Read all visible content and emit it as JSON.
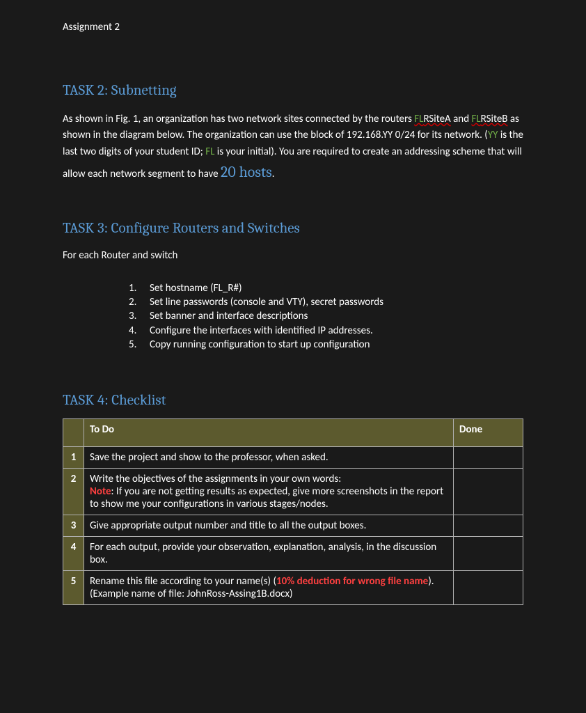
{
  "header": "Assignment 2",
  "task2": {
    "heading": "TASK 2: Subnetting",
    "p_pre": "As shown in Fig. 1, an organization has two network sites connected by the routers ",
    "site_a_fl": "FL",
    "site_a_rest": "RSiteA",
    "p_and": " and ",
    "site_b_fl": "FL",
    "site_b_rest": "RSiteB",
    "p_mid1": " as shown in the diagram below. The organization can use the block of 192.168.YY 0/24 for its network. (",
    "yy": "YY",
    "p_mid2": " is the last two digits of your student ID; ",
    "fl": "FL",
    "p_mid3": " is your initial). You are required to create an addressing scheme that will allow each network segment to have ",
    "hosts": "20 hosts",
    "p_end": "."
  },
  "task3": {
    "heading": "TASK 3: Configure Routers and Switches",
    "sub": "For each Router and switch",
    "items": [
      "Set hostname (FL_R#)",
      "Set line passwords (console and VTY), secret passwords",
      "Set banner and interface descriptions",
      "Configure the interfaces with identified IP addresses.",
      "Copy running configuration to start up configuration"
    ]
  },
  "task4": {
    "heading": "TASK 4: Checklist",
    "col_todo": "To Do",
    "col_done": "Done",
    "rows": [
      {
        "n": "1",
        "todo": "Save the project and show to the professor, when asked."
      },
      {
        "n": "2",
        "line1": "Write the objectives of the assignments in your own words:",
        "note_label": "Note",
        "note_text": ": If you are not getting results as expected, give more screenshots in the report to show me your configurations in various stages/nodes."
      },
      {
        "n": "3",
        "todo": "Give appropriate output number and title to all the output boxes."
      },
      {
        "n": "4",
        "todo": "For each output, provide your observation, explanation, analysis, in the discussion box."
      },
      {
        "n": "5",
        "pre": "Rename this file according to your name(s) (",
        "warn": "10% deduction for wrong file name",
        "post": "). (Example name of file: JohnRoss-Assing1B.docx)"
      }
    ]
  },
  "colors": {
    "background": "#1a1a1a",
    "heading": "#5b9bd5",
    "body_text": "#ffffff",
    "green": "#70ad47",
    "red": "#ff4040",
    "table_header_bg": "#5c5a2e",
    "table_border": "#b0b0b0"
  },
  "typography": {
    "heading_font": "Cambria, Georgia, serif",
    "body_font": "Calibri, Arial, sans-serif",
    "heading_size_pt": 16,
    "body_size_pt": 11,
    "hosts_size_pt": 16
  }
}
